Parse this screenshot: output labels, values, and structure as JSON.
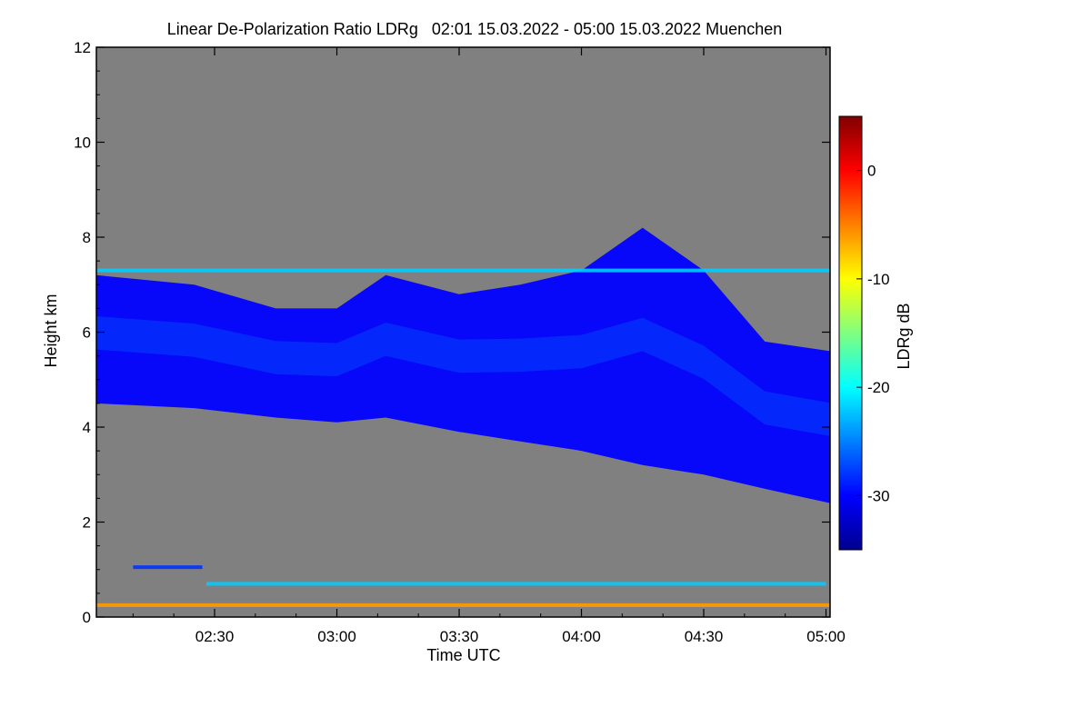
{
  "chart_data": {
    "type": "heatmap",
    "title": "Linear De-Polarization Ratio LDRg   02:01 15.03.2022 - 05:00 15.03.2022 Muenchen",
    "xlabel": "Time UTC",
    "ylabel": "Height km",
    "xlim": [
      "02:01",
      "05:00"
    ],
    "x_ticks": [
      "02:30",
      "03:00",
      "03:30",
      "04:00",
      "04:30",
      "05:00"
    ],
    "x_tick_minutes": [
      150,
      180,
      210,
      240,
      270,
      300
    ],
    "x_range_minutes": [
      121,
      301
    ],
    "ylim": [
      0,
      12
    ],
    "y_ticks": [
      "0",
      "2",
      "4",
      "6",
      "8",
      "10",
      "12"
    ],
    "y_tick_values": [
      0,
      2,
      4,
      6,
      8,
      10,
      12
    ],
    "background_color": "#808080",
    "colorbar": {
      "label": "LDRg dB",
      "range": [
        -35,
        5
      ],
      "ticks": [
        "0",
        "-10",
        "-20",
        "-30"
      ],
      "tick_values": [
        0,
        -10,
        -20,
        -30
      ],
      "colormap": [
        "#00008f",
        "#0000ff",
        "#0080ff",
        "#00ffff",
        "#80ff80",
        "#ffff00",
        "#ff8000",
        "#ff0000",
        "#800000"
      ]
    },
    "cloud_layer": {
      "typical_ldr_db": -30,
      "time_minutes": [
        121,
        145,
        165,
        180,
        192,
        210,
        225,
        240,
        255,
        270,
        285,
        301
      ],
      "top_km": [
        7.2,
        7.0,
        6.5,
        6.5,
        7.2,
        6.8,
        7.0,
        7.3,
        8.2,
        7.3,
        5.8,
        5.6
      ],
      "base_km": [
        4.5,
        4.4,
        4.2,
        4.1,
        4.2,
        3.9,
        3.7,
        3.5,
        3.2,
        3.0,
        2.7,
        2.4
      ]
    },
    "thin_layers": [
      {
        "height_km": 7.3,
        "ldr_db": -22,
        "from_minutes": 121,
        "to_minutes": 301
      },
      {
        "height_km": 1.05,
        "ldr_db": -28,
        "from_minutes": 130,
        "to_minutes": 147
      },
      {
        "height_km": 0.7,
        "ldr_db": -22,
        "from_minutes": 148,
        "to_minutes": 300
      },
      {
        "height_km": 0.25,
        "ldr_db": -6,
        "from_minutes": 121,
        "to_minutes": 301
      }
    ]
  }
}
